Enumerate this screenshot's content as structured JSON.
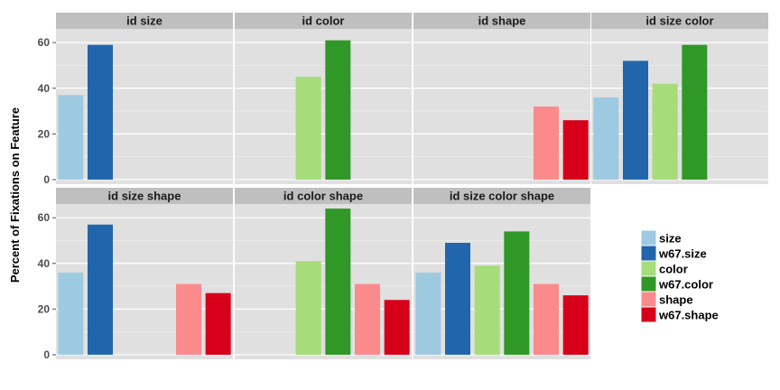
{
  "chart_data": {
    "type": "bar",
    "ylabel": "Percent of Fixations on Feature",
    "ylim": [
      -2,
      66
    ],
    "yticks": [
      0,
      20,
      40,
      60
    ],
    "grid": true,
    "legend_position": "right",
    "categories": [
      "size",
      "w67.size",
      "color",
      "w67.color",
      "shape",
      "w67.shape"
    ],
    "colors": {
      "size": "#9ecae1",
      "w67.size": "#2166ac",
      "color": "#a6dc7a",
      "w67.color": "#2f9826",
      "shape": "#fb8a8c",
      "w67.shape": "#d7001b"
    },
    "facets": [
      {
        "title": "id size",
        "values": [
          37,
          59,
          null,
          null,
          null,
          null
        ]
      },
      {
        "title": "id color",
        "values": [
          null,
          null,
          45,
          61,
          null,
          null
        ]
      },
      {
        "title": "id shape",
        "values": [
          null,
          null,
          null,
          null,
          32,
          26
        ]
      },
      {
        "title": "id size color",
        "values": [
          36,
          52,
          42,
          59,
          null,
          null
        ]
      },
      {
        "title": "id size shape",
        "values": [
          36,
          57,
          null,
          null,
          31,
          27
        ]
      },
      {
        "title": "id color shape",
        "values": [
          null,
          null,
          41,
          64,
          31,
          24
        ]
      },
      {
        "title": "id size color shape",
        "values": [
          36,
          49,
          39,
          54,
          31,
          26
        ]
      }
    ]
  }
}
